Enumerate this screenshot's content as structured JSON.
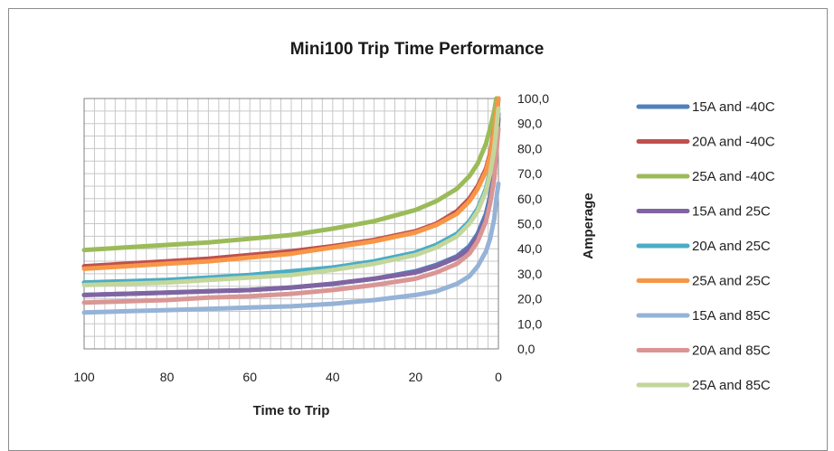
{
  "chart_data": {
    "type": "line",
    "title": "Mini100  Trip Time Performance",
    "xlabel": "Time to Trip",
    "ylabel": "Amperage",
    "xlim": [
      100,
      0
    ],
    "ylim": [
      0,
      100
    ],
    "x_ticks": [
      "100",
      "80",
      "60",
      "40",
      "20",
      "0"
    ],
    "y_ticks": [
      "0,0",
      "10,0",
      "20,0",
      "30,0",
      "40,0",
      "50,0",
      "60,0",
      "70,0",
      "80,0",
      "90,0",
      "100,0"
    ],
    "grid": true,
    "legend_position": "right",
    "x": [
      100,
      90,
      80,
      70,
      60,
      50,
      40,
      30,
      20,
      15,
      10,
      7,
      5,
      3,
      2,
      1,
      0.5,
      0
    ],
    "series": [
      {
        "name": "15A and -40C",
        "color": "#4f81bd",
        "values": [
          21.5,
          22,
          22.5,
          23,
          23.5,
          24.5,
          26,
          28,
          31,
          33.5,
          37,
          41,
          46,
          54,
          61,
          72,
          82,
          94
        ]
      },
      {
        "name": "20A and -40C",
        "color": "#c0504d",
        "values": [
          33,
          34,
          35,
          36,
          37.5,
          39,
          41,
          43.5,
          47,
          50,
          55,
          60,
          65,
          72,
          78,
          88,
          95,
          100
        ]
      },
      {
        "name": "25A and -40C",
        "color": "#9bbb59",
        "values": [
          39.5,
          40.5,
          41.5,
          42.5,
          44,
          45.5,
          48,
          51,
          55.5,
          59,
          64,
          69,
          74,
          82,
          88,
          95,
          100,
          100
        ]
      },
      {
        "name": "15A and 25C",
        "color": "#8064a2",
        "values": [
          21.5,
          22,
          22.5,
          23,
          23.5,
          24.5,
          26,
          28,
          30.5,
          33,
          36.5,
          40,
          45,
          52,
          59,
          70,
          80,
          92
        ]
      },
      {
        "name": "20A and 25C",
        "color": "#4bacc6",
        "values": [
          26.5,
          27,
          27.5,
          28.5,
          29.5,
          31,
          32.5,
          35,
          38.5,
          41.5,
          46,
          51,
          56,
          64,
          71,
          82,
          90,
          100
        ]
      },
      {
        "name": "25A and 25C",
        "color": "#f79646",
        "values": [
          32,
          33,
          34,
          35,
          36.5,
          38,
          40.5,
          43,
          46.5,
          49.5,
          54,
          59,
          64,
          71,
          77,
          87,
          94,
          100
        ]
      },
      {
        "name": "15A and 85C",
        "color": "#95b3d7",
        "values": [
          14.5,
          15,
          15.5,
          16,
          16.5,
          17,
          18,
          19.5,
          21.5,
          23,
          26,
          29,
          33,
          39,
          44,
          52,
          60,
          66
        ]
      },
      {
        "name": "20A and 85C",
        "color": "#d99694",
        "values": [
          18.5,
          19,
          19.5,
          20.5,
          21,
          22,
          23.5,
          25.5,
          28,
          30.5,
          34,
          38,
          43,
          51,
          58,
          68,
          78,
          88
        ]
      },
      {
        "name": "25A and 85C",
        "color": "#c3d69b",
        "values": [
          25.5,
          26,
          26.5,
          27.5,
          28.5,
          29.5,
          31.5,
          34,
          37.5,
          40.5,
          45,
          50,
          55,
          63,
          70,
          80,
          88,
          96
        ]
      }
    ]
  }
}
